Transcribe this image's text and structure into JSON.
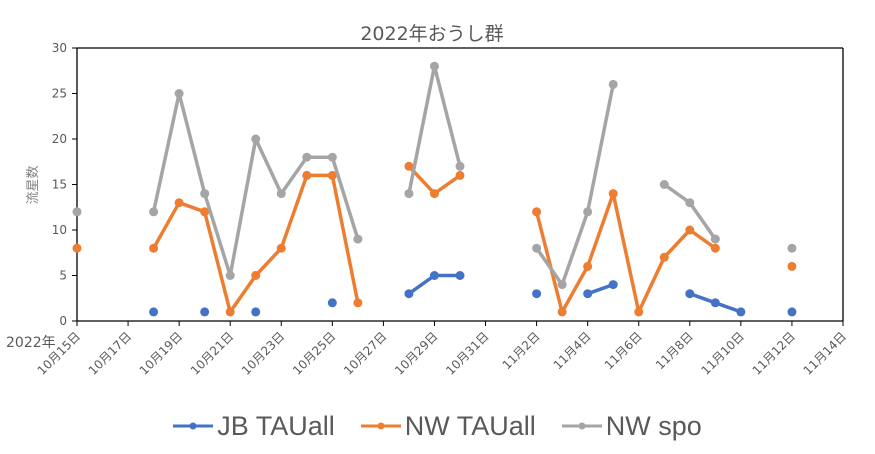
{
  "chart_data": {
    "type": "line",
    "title": "2022年おうし群",
    "xlabel": "",
    "ylabel": "流星数",
    "year_label": "2022年",
    "ylim": [
      0,
      30
    ],
    "yticks": [
      0,
      5,
      10,
      15,
      20,
      25,
      30
    ],
    "x_range": [
      "10月15日",
      "11月14日"
    ],
    "x_tick_labels": [
      "10月15日",
      "10月17日",
      "10月19日",
      "10月21日",
      "10月23日",
      "10月25日",
      "10月27日",
      "10月29日",
      "10月31日",
      "11月2日",
      "11月4日",
      "11月6日",
      "11月8日",
      "11月10日",
      "11月12日",
      "11月14日"
    ],
    "grid": false,
    "legend_position": "bottom",
    "x_dates": [
      "10/15",
      "10/16",
      "10/17",
      "10/18",
      "10/19",
      "10/20",
      "10/21",
      "10/22",
      "10/23",
      "10/24",
      "10/25",
      "10/26",
      "10/27",
      "10/28",
      "10/29",
      "10/30",
      "10/31",
      "11/1",
      "11/2",
      "11/3",
      "11/4",
      "11/5",
      "11/6",
      "11/7",
      "11/8",
      "11/9",
      "11/10",
      "11/11",
      "11/12",
      "11/13",
      "11/14"
    ],
    "series": [
      {
        "name": "JB TAUall",
        "color": "#4472C4",
        "values": [
          null,
          null,
          null,
          1,
          null,
          1,
          null,
          1,
          null,
          null,
          2,
          null,
          null,
          3,
          5,
          5,
          null,
          null,
          3,
          null,
          3,
          4,
          null,
          null,
          3,
          2,
          1,
          null,
          1,
          null,
          null
        ]
      },
      {
        "name": "NW TAUall",
        "color": "#ED7D31",
        "values": [
          8,
          null,
          null,
          8,
          13,
          12,
          1,
          5,
          8,
          16,
          16,
          2,
          null,
          17,
          14,
          16,
          null,
          null,
          12,
          1,
          6,
          14,
          1,
          7,
          10,
          8,
          null,
          null,
          6,
          null,
          null
        ]
      },
      {
        "name": "NW spo",
        "color": "#A5A5A5",
        "values": [
          12,
          null,
          null,
          12,
          25,
          14,
          5,
          20,
          14,
          18,
          18,
          9,
          null,
          14,
          28,
          17,
          null,
          null,
          8,
          4,
          12,
          26,
          null,
          15,
          13,
          9,
          null,
          null,
          8,
          null,
          null
        ]
      }
    ]
  },
  "legend": {
    "items": [
      {
        "label": "JB TAUall",
        "color": "#4472C4"
      },
      {
        "label": "NW TAUall",
        "color": "#ED7D31"
      },
      {
        "label": "NW spo",
        "color": "#A5A5A5"
      }
    ]
  }
}
